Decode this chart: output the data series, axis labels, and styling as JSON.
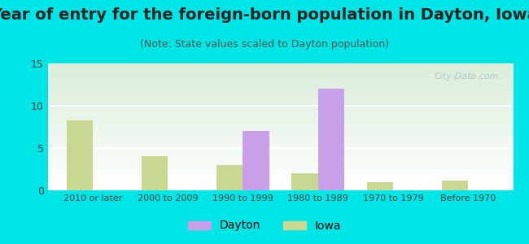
{
  "title": "Year of entry for the foreign-born population in Dayton, Iowa",
  "subtitle": "(Note: State values scaled to Dayton population)",
  "categories": [
    "2010 or later",
    "2000 to 2009",
    "1990 to 1999",
    "1980 to 1989",
    "1970 to 1979",
    "Before 1970"
  ],
  "dayton_values": [
    0,
    0,
    7,
    12,
    0,
    0
  ],
  "iowa_values": [
    8.3,
    4.0,
    3.0,
    2.0,
    1.0,
    1.2
  ],
  "dayton_color": "#c8a0e8",
  "iowa_color": "#c8d890",
  "ylim": [
    0,
    15
  ],
  "yticks": [
    0,
    5,
    10,
    15
  ],
  "background_color": "#00e5e5",
  "plot_bg_top": "#ffffff",
  "plot_bg_bottom": "#d8ecd8",
  "bar_width": 0.35,
  "title_fontsize": 14,
  "subtitle_fontsize": 9,
  "watermark": "City-Data.com"
}
